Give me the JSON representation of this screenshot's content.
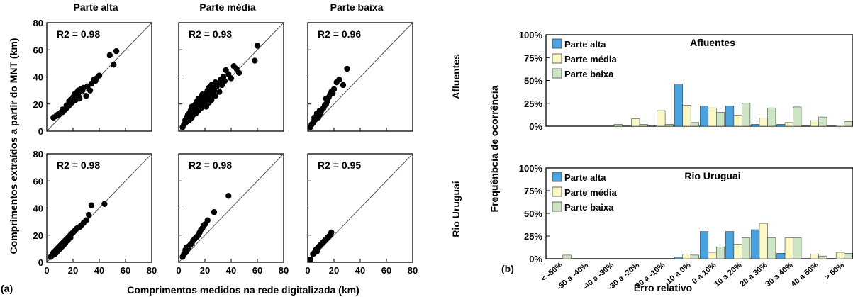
{
  "figure_labels": {
    "a": "(a)",
    "b": "(b)"
  },
  "scatter_axes": {
    "xlabel": "Comprimentos medidos na rede digitalizada (km)",
    "ylabel": "Comprimentos extraídos a partir do MNT (km)",
    "col_titles": [
      "Parte alta",
      "Parte média",
      "Parte baixa"
    ],
    "row_labels": [
      "Afluentes",
      "Rio Uruguai"
    ],
    "ticks": [
      "0",
      "20",
      "40",
      "60",
      "80"
    ]
  },
  "bar_axes": {
    "ylabel": "Frequênbcia de ocorrência",
    "xlabel": "Erro relativo",
    "y_ticks": [
      "0%",
      "25%",
      "50%",
      "75%",
      "100%"
    ],
    "legend": [
      "Parte alta",
      "Parte média",
      "Parte baixa"
    ],
    "colors": [
      "#4aa3df",
      "#fbf8c4",
      "#cde5c2"
    ]
  },
  "chart_data": [
    {
      "type": "scatter",
      "panel": "Afluentes - Parte alta",
      "annotation": "R2 = 0.98",
      "xlim": [
        0,
        80
      ],
      "ylim": [
        0,
        80
      ],
      "x": [
        5,
        7,
        8,
        9,
        10,
        11,
        12,
        12,
        13,
        14,
        15,
        15,
        16,
        17,
        17,
        18,
        18,
        19,
        20,
        20,
        21,
        21,
        22,
        22,
        23,
        24,
        24,
        25,
        25,
        26,
        27,
        28,
        30,
        31,
        33,
        34,
        36,
        37,
        38,
        40,
        48,
        51,
        53
      ],
      "y": [
        10,
        11,
        12,
        12,
        13,
        14,
        14,
        16,
        15,
        16,
        17,
        19,
        18,
        19,
        22,
        20,
        23,
        21,
        22,
        25,
        24,
        27,
        23,
        28,
        25,
        26,
        30,
        24,
        29,
        31,
        30,
        32,
        26,
        33,
        30,
        35,
        38,
        37,
        39,
        41,
        56,
        49,
        59
      ]
    },
    {
      "type": "scatter",
      "panel": "Afluentes - Parte média",
      "annotation": "R2 = 0.93",
      "xlim": [
        0,
        80
      ],
      "ylim": [
        0,
        80
      ],
      "x": [
        3,
        4,
        5,
        5,
        6,
        6,
        7,
        7,
        8,
        8,
        9,
        9,
        10,
        10,
        10,
        11,
        11,
        12,
        12,
        13,
        13,
        14,
        14,
        15,
        15,
        16,
        16,
        17,
        17,
        18,
        18,
        19,
        19,
        20,
        20,
        21,
        21,
        22,
        22,
        23,
        23,
        24,
        24,
        25,
        25,
        26,
        26,
        27,
        28,
        28,
        29,
        30,
        31,
        32,
        33,
        34,
        35,
        36,
        38,
        40,
        42,
        44,
        46,
        58,
        60
      ],
      "y": [
        3,
        5,
        6,
        8,
        7,
        10,
        9,
        12,
        8,
        13,
        11,
        15,
        10,
        14,
        18,
        12,
        17,
        14,
        19,
        13,
        20,
        16,
        22,
        15,
        24,
        18,
        21,
        17,
        25,
        20,
        27,
        19,
        23,
        22,
        26,
        18,
        28,
        24,
        30,
        21,
        32,
        25,
        29,
        23,
        34,
        27,
        31,
        30,
        26,
        36,
        33,
        35,
        29,
        38,
        34,
        40,
        37,
        45,
        42,
        39,
        48,
        46,
        43,
        52,
        63
      ]
    },
    {
      "type": "scatter",
      "panel": "Afluentes - Parte baixa",
      "annotation": "R2 = 0.96",
      "xlim": [
        0,
        80
      ],
      "ylim": [
        0,
        80
      ],
      "x": [
        2,
        3,
        4,
        5,
        5,
        6,
        7,
        7,
        8,
        9,
        9,
        10,
        11,
        12,
        13,
        14,
        14,
        15,
        16,
        17,
        18,
        19,
        20,
        22,
        24,
        27,
        30
      ],
      "y": [
        3,
        5,
        6,
        8,
        10,
        9,
        11,
        13,
        10,
        12,
        15,
        14,
        16,
        17,
        19,
        20,
        24,
        22,
        25,
        27,
        29,
        28,
        31,
        36,
        38,
        34,
        46
      ]
    },
    {
      "type": "scatter",
      "panel": "Rio Uruguai - Parte alta",
      "annotation": "R2 = 0.98",
      "xlim": [
        0,
        80
      ],
      "ylim": [
        0,
        80
      ],
      "x": [
        3,
        4,
        5,
        5,
        6,
        6,
        7,
        7,
        8,
        8,
        9,
        9,
        10,
        10,
        11,
        11,
        12,
        12,
        13,
        13,
        14,
        14,
        15,
        16,
        16,
        17,
        18,
        18,
        19,
        20,
        21,
        22,
        23,
        25,
        26,
        28,
        30,
        32,
        34,
        44
      ],
      "y": [
        4,
        5,
        6,
        7,
        6,
        8,
        7,
        9,
        8,
        10,
        9,
        11,
        10,
        12,
        11,
        13,
        12,
        14,
        13,
        15,
        14,
        16,
        17,
        16,
        18,
        19,
        18,
        20,
        21,
        22,
        23,
        24,
        25,
        26,
        27,
        29,
        31,
        35,
        42,
        43
      ]
    },
    {
      "type": "scatter",
      "panel": "Rio Uruguai - Parte média",
      "annotation": "R2 = 0.98",
      "xlim": [
        0,
        80
      ],
      "ylim": [
        0,
        80
      ],
      "x": [
        3,
        4,
        5,
        5,
        6,
        6,
        7,
        8,
        9,
        10,
        11,
        12,
        13,
        14,
        15,
        16,
        17,
        18,
        19,
        20,
        22,
        27,
        38
      ],
      "y": [
        4,
        6,
        7,
        9,
        8,
        11,
        10,
        12,
        13,
        14,
        16,
        17,
        18,
        19,
        20,
        22,
        24,
        25,
        27,
        28,
        31,
        37,
        49
      ]
    },
    {
      "type": "scatter",
      "panel": "Rio Uruguai - Parte baixa",
      "annotation": "R2 = 0.95",
      "xlim": [
        0,
        80
      ],
      "ylim": [
        0,
        80
      ],
      "x": [
        2,
        4,
        5,
        6,
        7,
        7,
        8,
        9,
        10,
        11,
        12,
        13,
        14,
        15,
        16,
        17,
        18
      ],
      "y": [
        2,
        6,
        7,
        9,
        8,
        10,
        11,
        12,
        13,
        14,
        15,
        16,
        17,
        18,
        19,
        20,
        22
      ]
    },
    {
      "type": "bar",
      "panel": "Afluentes",
      "title": "Afluentes",
      "categories": [
        "< -50%",
        "-50 a -40%",
        "-40 a -30%",
        "-30 a -20%",
        "-20 a -10%",
        "-10 a 0%",
        "0 a 10%",
        "10 a 20%",
        "20 a 30%",
        "30 a 40%",
        "40 a 50%",
        "> 50%"
      ],
      "series": [
        {
          "name": "Parte alta",
          "values": [
            0,
            0,
            0,
            0,
            0,
            46,
            22,
            22,
            2,
            2,
            0,
            0
          ]
        },
        {
          "name": "Parte média",
          "values": [
            0,
            0,
            0,
            8,
            17,
            23,
            20,
            12,
            9,
            4,
            6,
            1
          ]
        },
        {
          "name": "Parte baixa",
          "values": [
            0,
            0,
            2,
            2,
            2,
            4,
            15,
            25,
            20,
            21,
            10,
            5
          ]
        }
      ],
      "ylim": [
        0,
        100
      ]
    },
    {
      "type": "bar",
      "panel": "Rio Uruguai",
      "title": "Rio Uruguai",
      "categories": [
        "< -50%",
        "-50 a -40%",
        "-40 a -30%",
        "-30 a -20%",
        "-20 a -10%",
        "-10 a 0%",
        "0 a 10%",
        "10 a 20%",
        "20 a 30%",
        "30 a 40%",
        "40 a 50%",
        "> 50%"
      ],
      "series": [
        {
          "name": "Parte alta",
          "values": [
            0,
            0,
            0,
            0,
            0,
            2,
            30,
            30,
            32,
            6,
            0,
            0
          ]
        },
        {
          "name": "Parte média",
          "values": [
            0,
            0,
            0,
            0,
            0,
            5,
            7,
            16,
            39,
            23,
            5,
            7
          ]
        },
        {
          "name": "Parte baixa",
          "values": [
            4,
            0,
            0,
            0,
            0,
            4,
            13,
            23,
            23,
            23,
            3,
            6
          ]
        }
      ],
      "ylim": [
        0,
        100
      ]
    }
  ]
}
